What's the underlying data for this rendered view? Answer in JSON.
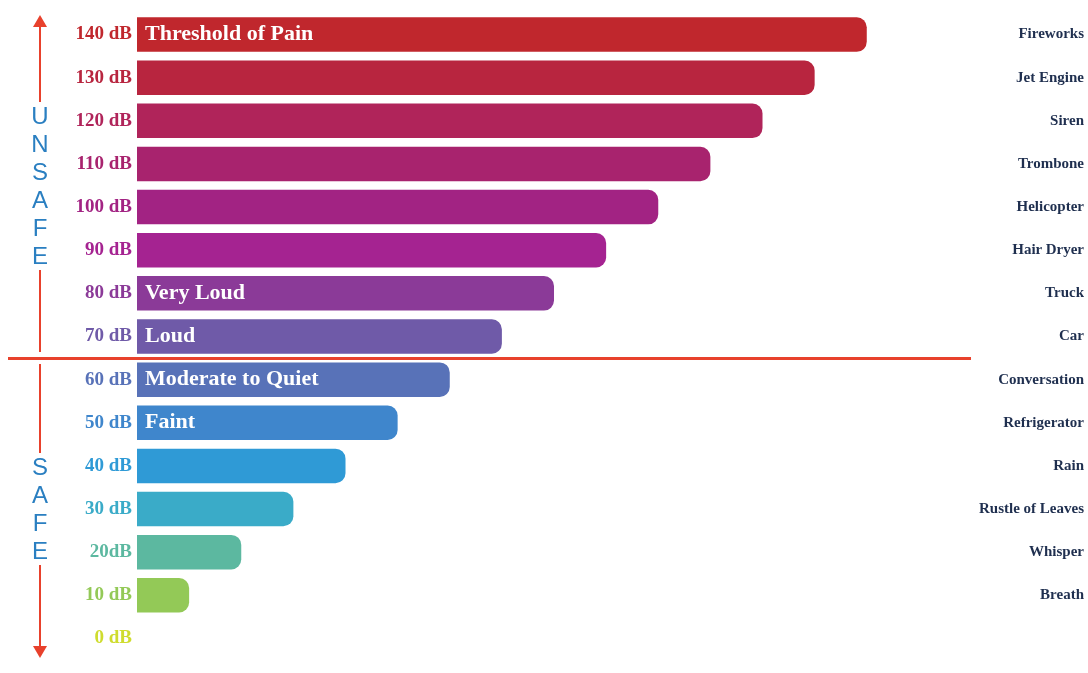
{
  "chart_data": {
    "type": "bar",
    "orientation": "horizontal",
    "categories": [
      "Fireworks",
      "Jet Engine",
      "Siren",
      "Trombone",
      "Helicopter",
      "Hair Dryer",
      "Truck",
      "Car",
      "Conversation",
      "Refrigerator",
      "Rain",
      "Rustle of Leaves",
      "Whisper",
      "Breath",
      null
    ],
    "values": [
      140,
      130,
      120,
      110,
      100,
      90,
      80,
      70,
      60,
      50,
      40,
      30,
      20,
      10,
      0
    ],
    "value_labels": [
      "140 dB",
      "130 dB",
      "120 dB",
      "110 dB",
      "100 dB",
      "90 dB",
      "80 dB",
      "70 dB",
      "60 dB",
      "50 dB",
      "40 dB",
      "30 dB",
      "20dB",
      "10 dB",
      "0 dB"
    ],
    "colors": [
      "#c0272d",
      "#b8253f",
      "#b0245a",
      "#a8236e",
      "#a22383",
      "#a52391",
      "#8b3a98",
      "#6f5aa8",
      "#5872b8",
      "#3f86cc",
      "#2f9ad6",
      "#3aabc8",
      "#5cb8a0",
      "#93c957",
      "#cfdc2e"
    ],
    "annotations": [
      {
        "text": "Threshold of Pain",
        "y": "Fireworks"
      },
      {
        "text": "Very Loud",
        "y": "Truck"
      },
      {
        "text": "Loud",
        "y": "Car"
      },
      {
        "text": "Moderate to Quiet",
        "y": "Conversation"
      },
      {
        "text": "Faint",
        "y": "Refrigerator"
      },
      "UNSAFE",
      "SAFE"
    ],
    "grid": false,
    "legend": false
  }
}
